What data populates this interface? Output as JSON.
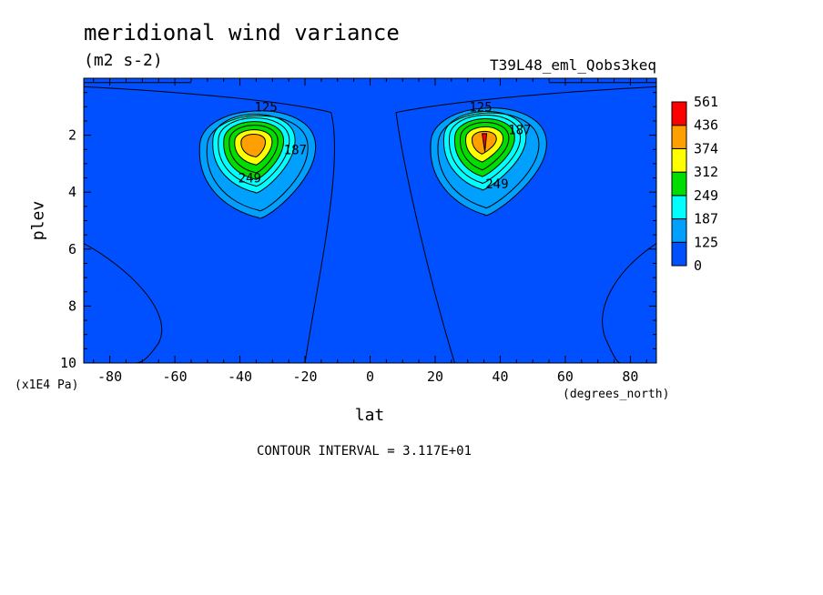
{
  "chart_data": {
    "type": "contour",
    "title": "meridional wind variance",
    "units": "(m2 s-2)",
    "run_label": "T39L48_eml_Qobs3keq",
    "xlabel": "lat",
    "xlabel_units": "(degrees_north)",
    "ylabel": "plev",
    "ylabel_units": "(x1E4 Pa)",
    "xlim": [
      -88,
      88
    ],
    "ylim": [
      10,
      0
    ],
    "x_ticks": [
      "-80",
      "-60",
      "-40",
      "-20",
      "0",
      "20",
      "40",
      "60",
      "80"
    ],
    "y_ticks": [
      "2",
      "4",
      "6",
      "8",
      "10"
    ],
    "contour_interval_text": "CONTOUR INTERVAL = 3.117E+01",
    "legend_levels": [
      "0",
      "125",
      "187",
      "249",
      "312",
      "374",
      "436",
      "561"
    ],
    "legend_colors": [
      "#0050ff",
      "#00a0ff",
      "#00ffff",
      "#00dd00",
      "#ffff00",
      "#ffa000",
      "#ff0000"
    ],
    "contour_labels": [
      {
        "text": "125",
        "lat": -32,
        "plev": 1.0
      },
      {
        "text": "187",
        "lat": -23,
        "plev": 2.5
      },
      {
        "text": "249",
        "lat": -37,
        "plev": 3.5
      },
      {
        "text": "125",
        "lat": 34,
        "plev": 1.0
      },
      {
        "text": "187",
        "lat": 46,
        "plev": 1.8
      },
      {
        "text": "249",
        "lat": 39,
        "plev": 3.7
      }
    ],
    "maxima": [
      {
        "lat": -36,
        "plev": 2.3,
        "value": 420
      },
      {
        "lat": 35,
        "plev": 2.2,
        "value": 470
      }
    ]
  }
}
